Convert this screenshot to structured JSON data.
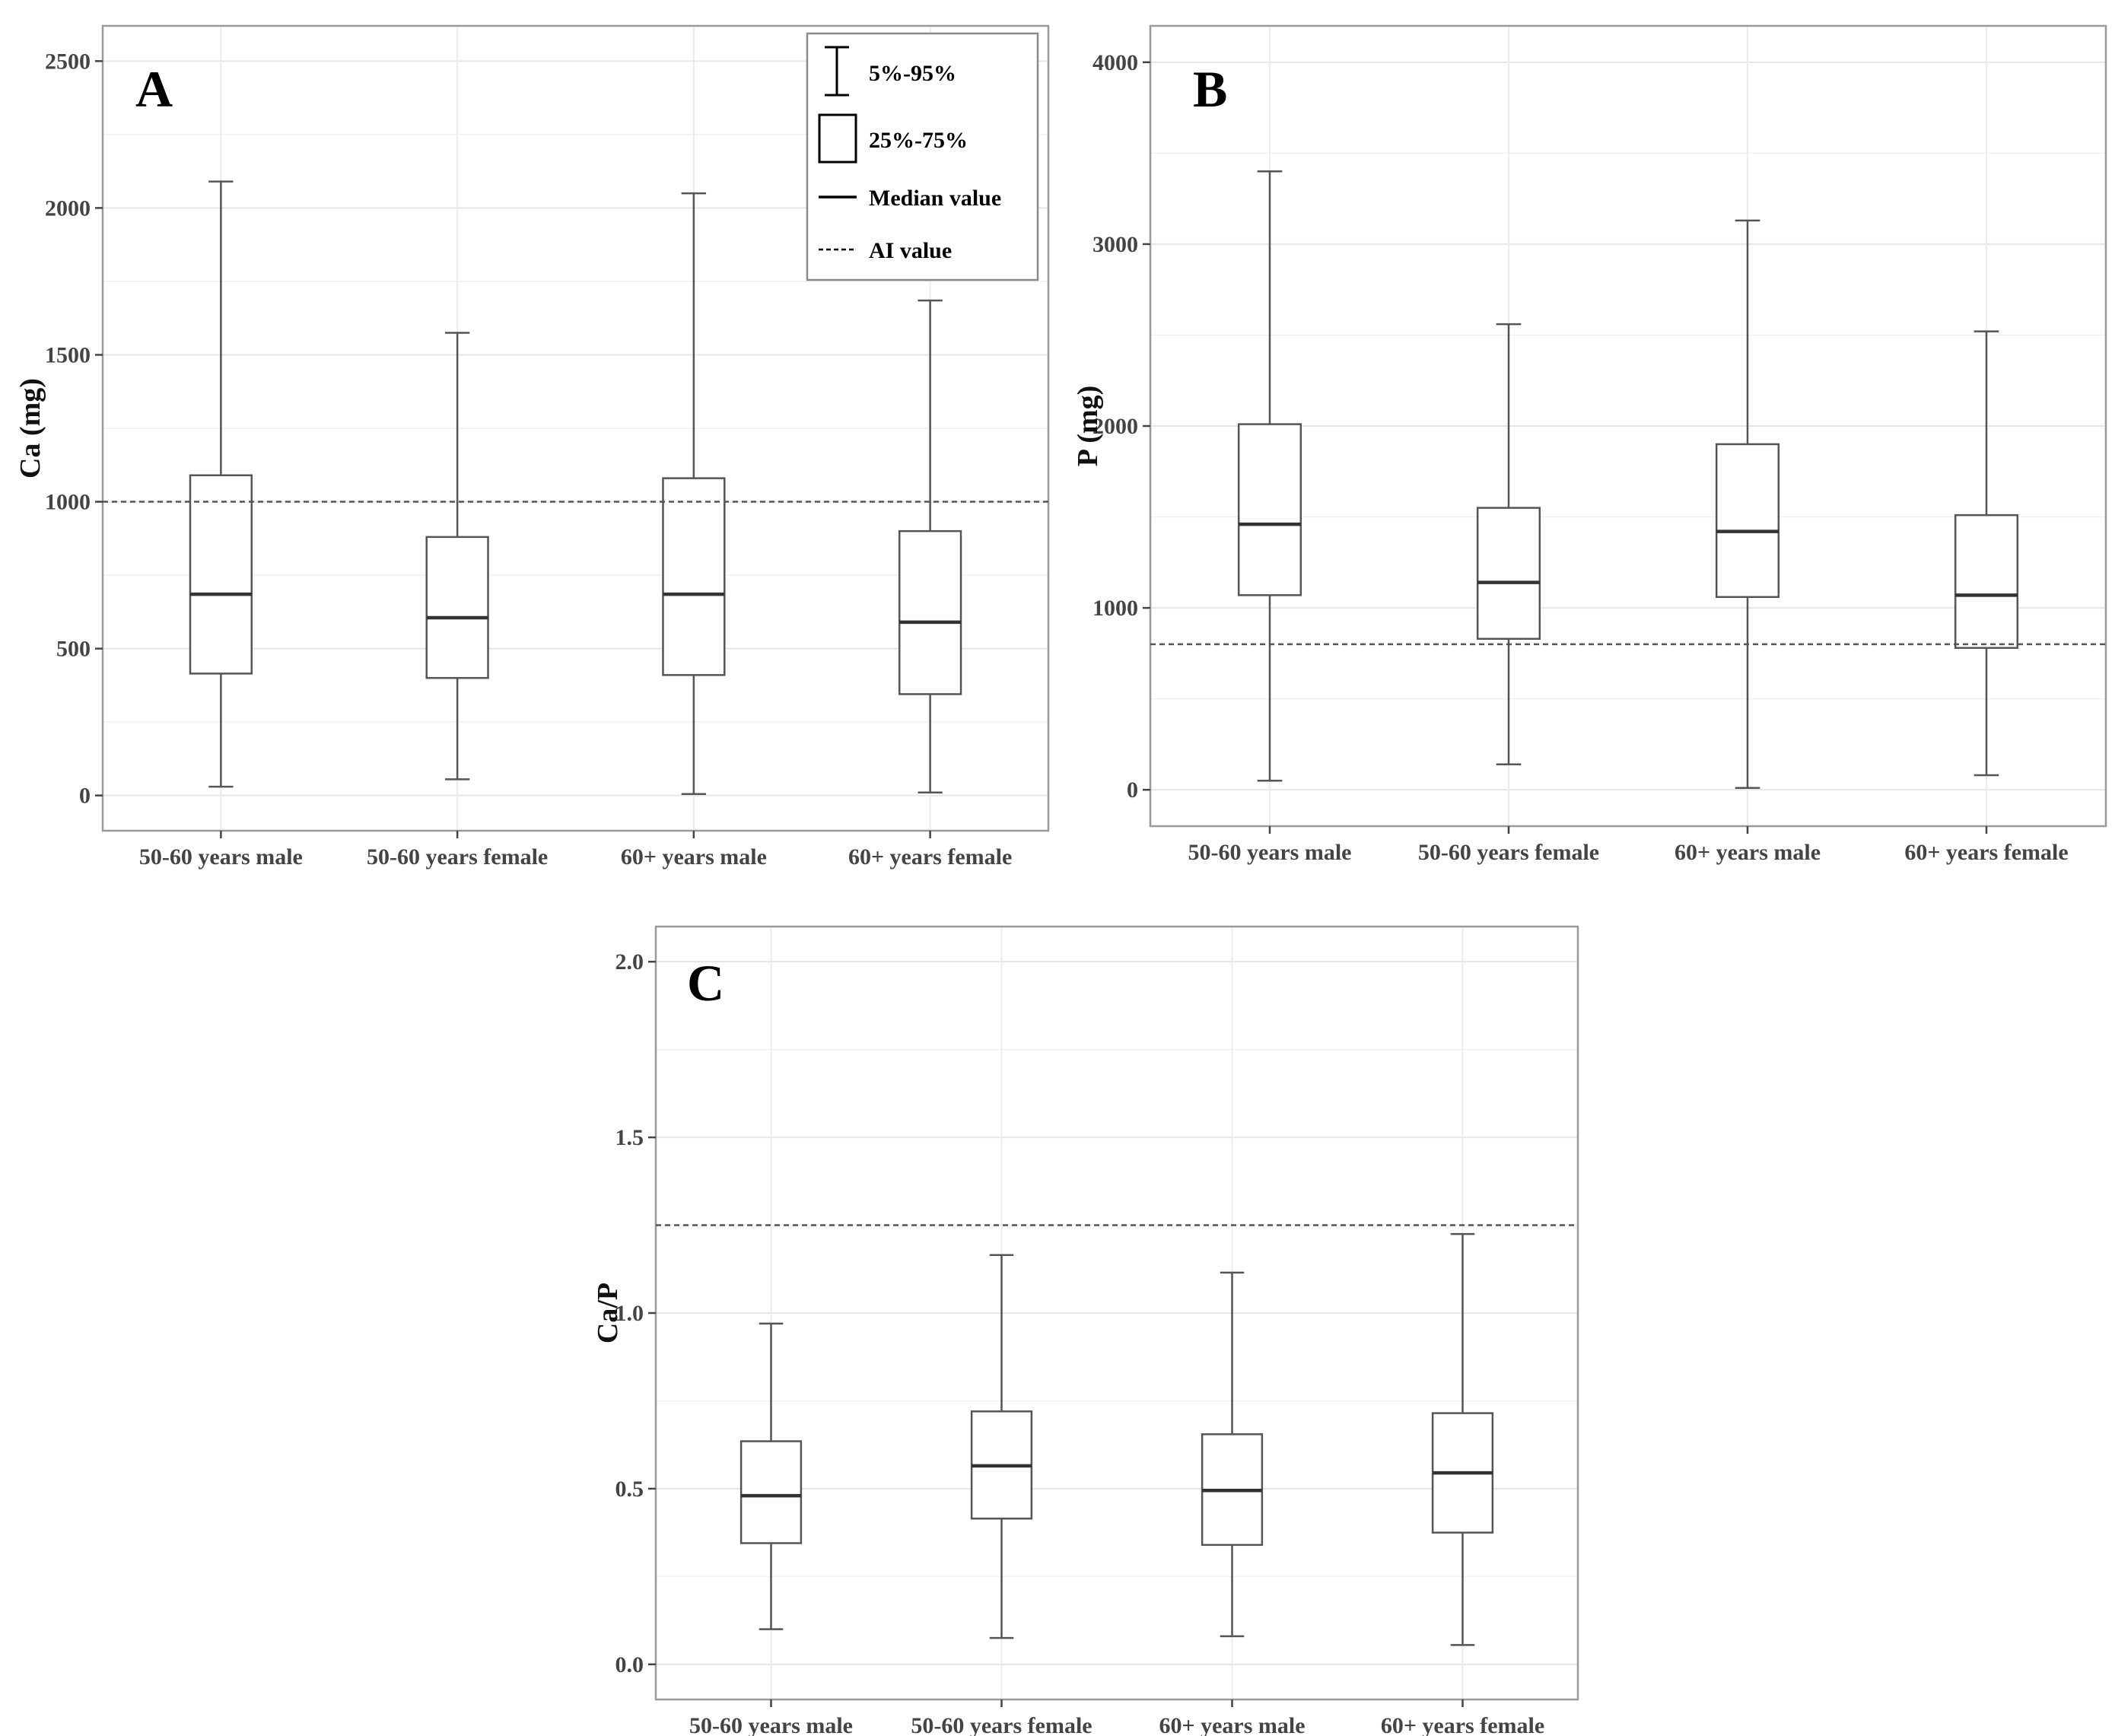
{
  "chart_data": [
    {
      "type": "box",
      "panel_label": "A",
      "ylabel": "Ca (mg)",
      "xlabel": "",
      "ylim": [
        -120,
        2620
      ],
      "yticks": [
        0,
        500,
        1000,
        1500,
        2000,
        2500
      ],
      "ytick_labels": [
        "0",
        "500",
        "1000",
        "1500",
        "2000",
        "2500"
      ],
      "grid": true,
      "categories": [
        "50-60 years male",
        "50-60 years female",
        "60+ years male",
        "60+ years female"
      ],
      "boxes": [
        {
          "whisker_low": 30,
          "q1": 415,
          "median": 685,
          "q3": 1090,
          "whisker_high": 2090
        },
        {
          "whisker_low": 55,
          "q1": 400,
          "median": 605,
          "q3": 880,
          "whisker_high": 1575
        },
        {
          "whisker_low": 5,
          "q1": 410,
          "median": 685,
          "q3": 1080,
          "whisker_high": 2050
        },
        {
          "whisker_low": 10,
          "q1": 345,
          "median": 590,
          "q3": 900,
          "whisker_high": 1685
        }
      ],
      "reference_line": {
        "label": "AI value",
        "value": 1000
      }
    },
    {
      "type": "box",
      "panel_label": "B",
      "ylabel": "P (mg)",
      "xlabel": "",
      "ylim": [
        -200,
        4200
      ],
      "yticks": [
        0,
        1000,
        2000,
        3000,
        4000
      ],
      "ytick_labels": [
        "0",
        "1000",
        "2000",
        "3000",
        "4000"
      ],
      "grid": true,
      "categories": [
        "50-60 years male",
        "50-60 years female",
        "60+ years male",
        "60+ years female"
      ],
      "boxes": [
        {
          "whisker_low": 50,
          "q1": 1070,
          "median": 1460,
          "q3": 2010,
          "whisker_high": 3400
        },
        {
          "whisker_low": 140,
          "q1": 830,
          "median": 1140,
          "q3": 1550,
          "whisker_high": 2560
        },
        {
          "whisker_low": 10,
          "q1": 1060,
          "median": 1420,
          "q3": 1900,
          "whisker_high": 3130
        },
        {
          "whisker_low": 80,
          "q1": 780,
          "median": 1070,
          "q3": 1510,
          "whisker_high": 2520
        }
      ],
      "reference_line": {
        "label": "AI value",
        "value": 800
      }
    },
    {
      "type": "box",
      "panel_label": "C",
      "ylabel": "Ca/P",
      "xlabel": "",
      "ylim": [
        -0.1,
        2.1
      ],
      "yticks": [
        0.0,
        0.5,
        1.0,
        1.5,
        2.0
      ],
      "ytick_labels": [
        "0.0",
        "0.5",
        "1.0",
        "1.5",
        "2.0"
      ],
      "grid": true,
      "categories": [
        "50-60 years male",
        "50-60 years female",
        "60+ years male",
        "60+ years female"
      ],
      "boxes": [
        {
          "whisker_low": 0.1,
          "q1": 0.345,
          "median": 0.48,
          "q3": 0.635,
          "whisker_high": 0.97
        },
        {
          "whisker_low": 0.075,
          "q1": 0.415,
          "median": 0.565,
          "q3": 0.72,
          "whisker_high": 1.165
        },
        {
          "whisker_low": 0.08,
          "q1": 0.34,
          "median": 0.495,
          "q3": 0.655,
          "whisker_high": 1.115
        },
        {
          "whisker_low": 0.055,
          "q1": 0.375,
          "median": 0.545,
          "q3": 0.715,
          "whisker_high": 1.225
        }
      ],
      "reference_line": {
        "label": "AI value",
        "value": 1.25
      }
    }
  ],
  "legend": {
    "whisker_label": "5%-95%",
    "box_label": "25%-75%",
    "median_label": "Median value",
    "ai_label": "AI value"
  }
}
